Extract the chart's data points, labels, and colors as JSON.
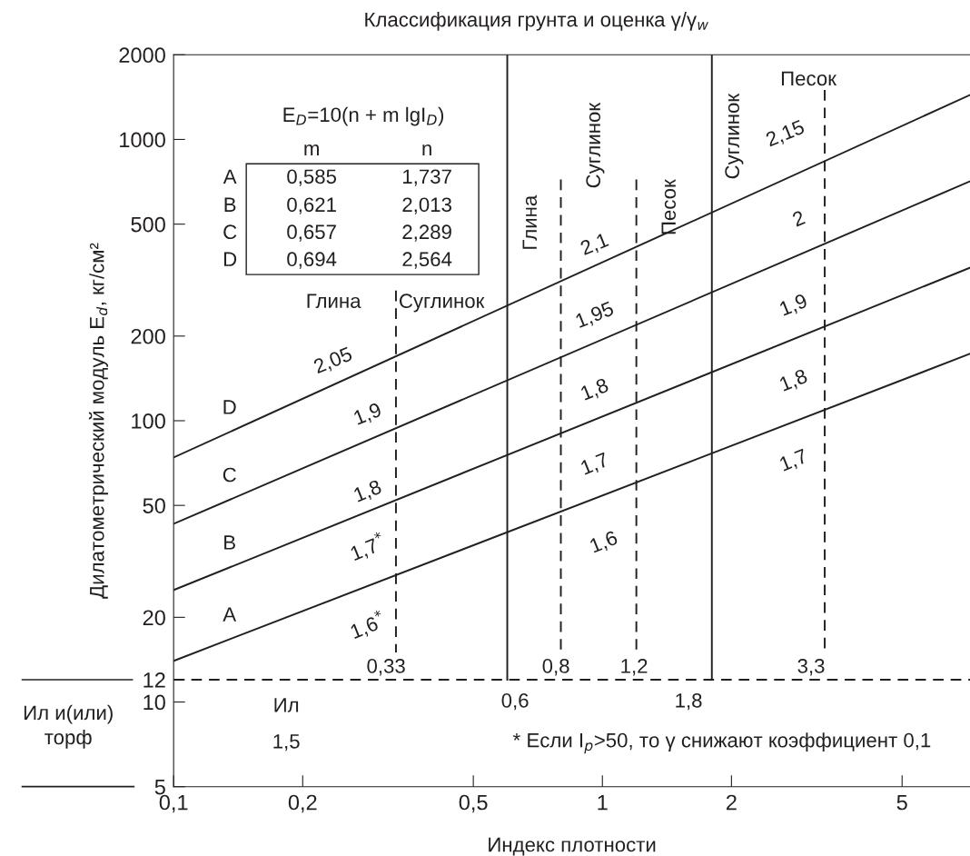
{
  "chart_data": {
    "type": "line",
    "title": "Классификация грунта и оценка γ/γ$_{w}$",
    "xlabel": "Индекс плотности",
    "ylabel": "Дилатометрический модуль E$_{d}$, кг/см²",
    "log": "xy",
    "xlim": [
      0.1,
      7.2
    ],
    "ylim": [
      5,
      2000
    ],
    "xticks": [
      {
        "value": 0.1,
        "label": "0,1"
      },
      {
        "value": 0.2,
        "label": "0,2"
      },
      {
        "value": 0.5,
        "label": "0,5"
      },
      1,
      2,
      5
    ],
    "yticks": [
      5,
      10,
      12,
      20,
      50,
      100,
      200,
      500,
      1000,
      2000
    ],
    "series": [
      {
        "name": "A",
        "color": "#231f20",
        "x": [
          0.1,
          7.2
        ],
        "values": [
          14,
          173
        ]
      },
      {
        "name": "B",
        "color": "#231f20",
        "x": [
          0.1,
          7.2
        ],
        "values": [
          25,
          350
        ]
      },
      {
        "name": "C",
        "color": "#231f20",
        "x": [
          0.1,
          7.2
        ],
        "values": [
          43,
          710
        ]
      },
      {
        "name": "D",
        "color": "#231f20",
        "x": [
          0.1,
          7.2
        ],
        "values": [
          74,
          1440
        ]
      },
      {
        "color": "#231f20",
        "x": [
          0.6,
          0.6
        ],
        "values": [
          12,
          2000
        ]
      },
      {
        "color": "#231f20",
        "x": [
          1.8,
          1.8
        ],
        "values": [
          12,
          2000
        ]
      },
      {
        "color": "#231f20",
        "x": [
          0.33,
          0.33
        ],
        "values": [
          290,
          15
        ],
        "line_style": "dashed"
      },
      {
        "color": "#231f20",
        "x": [
          0.8,
          0.8
        ],
        "values": [
          720,
          15
        ],
        "line_style": "dashed"
      },
      {
        "color": "#231f20",
        "x": [
          1.2,
          1.2
        ],
        "values": [
          720,
          15
        ],
        "line_style": "dashed"
      },
      {
        "color": "#231f20",
        "x": [
          3.3,
          3.3
        ],
        "values": [
          1500,
          15
        ],
        "line_style": "dashed"
      }
    ],
    "ref_lines": [
      {
        "axis": "y",
        "value": 12,
        "color": "#231f20",
        "line_style": "dashed"
      }
    ],
    "annotations": [
      "E$_{D}$=10(n + m lgI$_{D}$)",
      "m",
      "n",
      "0,585",
      "1,737",
      "0,621",
      "2,013",
      "0,657",
      "2,289",
      "0,694",
      "2,564",
      "Ил и(или)\nторф",
      "* Если I$_{p}$>50, то γ снижают коэффициент 0,1",
      "2,05",
      "1,9",
      "1,8",
      "1,7$^{*}$",
      "1,6$^{*}$",
      "2,1",
      "1,95",
      "1,8",
      "1,7",
      "1,6",
      "2,15",
      "2",
      "1,9",
      "1,8",
      "1,7",
      "Глина",
      "Суглинок",
      "Глина",
      "Суглинок",
      "Песок",
      "Суглинок",
      "Песок",
      "Ил",
      "1,5",
      "0,6",
      "1,8",
      "0,33",
      "0,8",
      "1,2",
      "3,3"
    ]
  }
}
